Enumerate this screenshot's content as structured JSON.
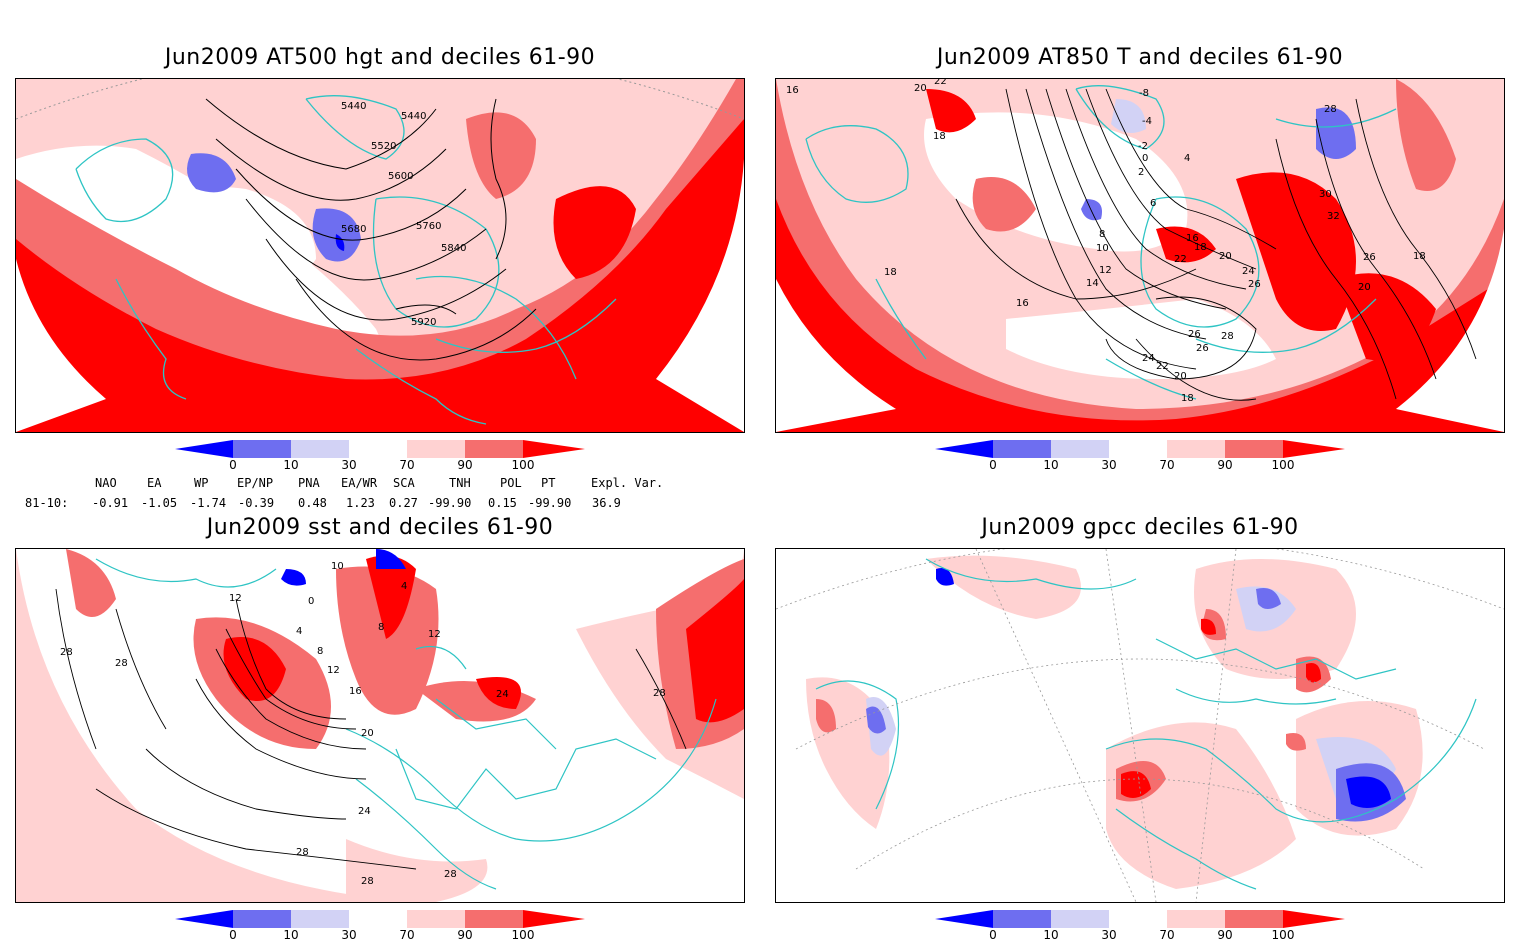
{
  "panels": [
    {
      "title": "Jun2009 AT500 hgt and deciles 61-90",
      "contour_labels": [
        "5440",
        "5440",
        "5520",
        "5600",
        "5680",
        "5760",
        "5840",
        "5920"
      ]
    },
    {
      "title": "Jun2009 AT850 T and deciles 61-90",
      "contour_labels": [
        "16",
        "20",
        "22",
        "18",
        "-8",
        "-4",
        "-2",
        "0",
        "2",
        "4",
        "6",
        "8",
        "10",
        "12",
        "14",
        "16",
        "16",
        "18",
        "20",
        "22",
        "24",
        "26",
        "26",
        "28",
        "28",
        "26",
        "24",
        "22",
        "20",
        "18",
        "30",
        "32",
        "26",
        "20",
        "18",
        "18"
      ]
    },
    {
      "title": "Jun2009 sst and deciles 61-90",
      "contour_labels": [
        "12",
        "10",
        "0",
        "4",
        "4",
        "8",
        "8",
        "12",
        "12",
        "16",
        "20",
        "24",
        "24",
        "28",
        "28",
        "28",
        "28",
        "28",
        "28"
      ]
    },
    {
      "title": "Jun2009 gpcc deciles 61-90",
      "contour_labels": []
    }
  ],
  "colorbar": {
    "ticks": [
      "0",
      "10",
      "30",
      "70",
      "90",
      "100"
    ],
    "colors": [
      "#0000ff",
      "#6e6ef0",
      "#d2d2f5",
      "#ffffff",
      "#ffd2d2",
      "#f56e6e",
      "#ff0000"
    ]
  },
  "indices": {
    "headers": [
      "NAO",
      "EA",
      "WP",
      "EP/NP",
      "PNA",
      "EA/WR",
      "SCA",
      "TNH",
      "POL",
      "PT",
      "Expl. Var."
    ],
    "row_label": "81-10:",
    "values": [
      "-0.91",
      "-1.05",
      "-1.74",
      "-0.39",
      "0.48",
      "1.23",
      "0.27",
      "-99.90",
      "0.15",
      "-99.90",
      "36.9"
    ]
  },
  "colors": {
    "coast": "#2ec4c4",
    "contour": "#000000",
    "grid": "#999999"
  }
}
